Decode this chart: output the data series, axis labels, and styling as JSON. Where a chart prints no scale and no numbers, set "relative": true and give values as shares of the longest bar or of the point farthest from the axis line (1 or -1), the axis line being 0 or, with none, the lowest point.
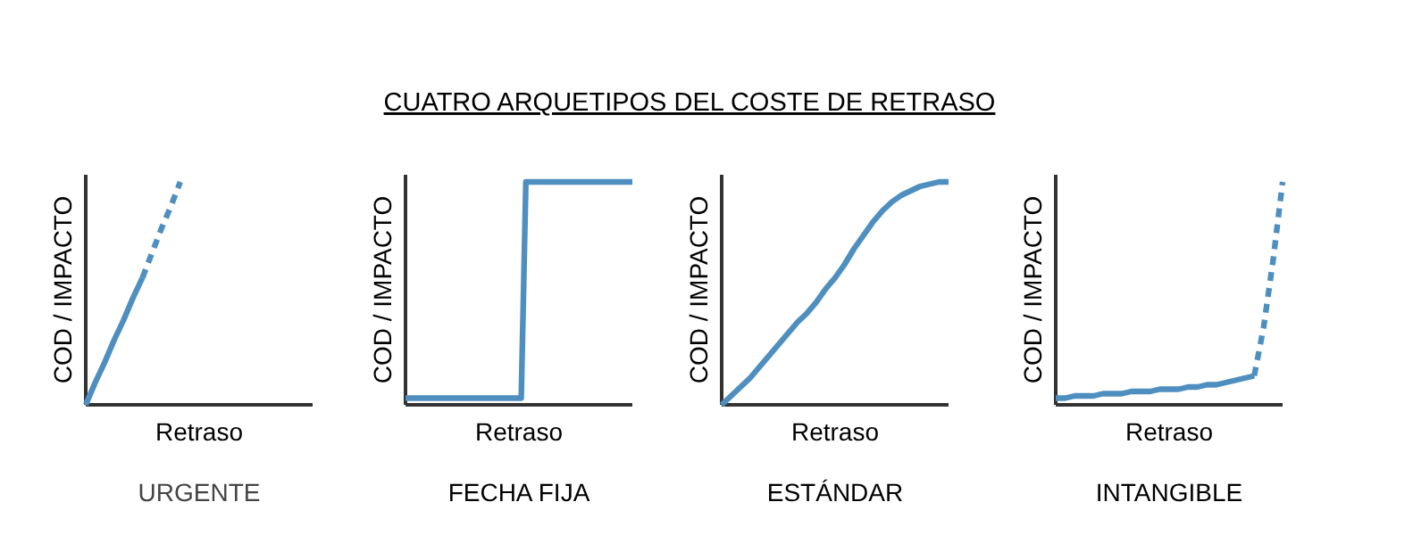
{
  "chart_data": [
    {
      "type": "line",
      "title": "URGENTE",
      "xlabel": "Retraso",
      "ylabel": "COD / IMPACTO",
      "relative": true,
      "categories": [
        null,
        null,
        null,
        null,
        null,
        null,
        null,
        null,
        null,
        null,
        null
      ],
      "annotations": [
        "CUATRO ARQUETIPOS DEL COSTE DE RETRASO"
      ],
      "series": [
        {
          "color": "#4f8fc0",
          "line_style": "solid",
          "values": [
            0,
            0.1,
            0.19,
            0.29,
            0.38,
            0.48,
            0.57,
            null,
            null,
            null,
            null
          ]
        },
        {
          "color": "#4f8fc0",
          "line_style": "dashed",
          "values": [
            null,
            null,
            null,
            null,
            null,
            null,
            0.57,
            0.68,
            0.79,
            0.89,
            1
          ]
        }
      ]
    },
    {
      "type": "line",
      "title": "FECHA FIJA",
      "xlabel": "Retraso",
      "ylabel": "COD / IMPACTO",
      "relative": true,
      "categories": [
        null,
        null,
        null,
        null,
        null,
        null,
        null,
        null,
        null,
        null,
        null,
        null,
        null,
        null,
        null,
        null,
        null,
        null,
        null,
        null,
        null,
        null,
        null,
        null,
        null,
        null,
        null,
        null,
        null,
        null,
        null,
        null,
        null,
        null,
        null,
        null,
        null,
        null,
        null,
        null,
        null,
        null,
        null,
        null,
        null,
        null,
        null,
        null,
        null,
        null
      ],
      "series": [
        {
          "color": "#4f8fc0",
          "line_style": "solid",
          "values": [
            0.03,
            0.03,
            0.03,
            0.03,
            0.03,
            0.03,
            0.03,
            0.03,
            0.03,
            0.03,
            0.03,
            0.03,
            0.03,
            0.03,
            0.03,
            0.03,
            0.03,
            0.03,
            0.03,
            0.03,
            0.03,
            0.03,
            0.03,
            0.03,
            0.03,
            0.03,
            1,
            1,
            1,
            1,
            1,
            1,
            1,
            1,
            1,
            1,
            1,
            1,
            1,
            1,
            1,
            1,
            1,
            1,
            1,
            1,
            1,
            1,
            1,
            1
          ]
        }
      ]
    },
    {
      "type": "line",
      "title": "ESTÁNDAR",
      "xlabel": "Retraso",
      "ylabel": "COD / IMPACTO",
      "relative": true,
      "categories": [
        null,
        null,
        null,
        null,
        null,
        null,
        null,
        null,
        null,
        null,
        null,
        null,
        null,
        null,
        null,
        null,
        null,
        null,
        null,
        null,
        null,
        null,
        null,
        null,
        null
      ],
      "series": [
        {
          "color": "#4f8fc0",
          "line_style": "solid",
          "values": [
            0,
            0.04,
            0.08,
            0.12,
            0.17,
            0.22,
            0.27,
            0.32,
            0.37,
            0.41,
            0.46,
            0.52,
            0.57,
            0.63,
            0.7,
            0.76,
            0.82,
            0.87,
            0.91,
            0.94,
            0.96,
            0.98,
            0.99,
            1,
            1
          ]
        }
      ]
    },
    {
      "type": "line",
      "title": "INTANGIBLE",
      "xlabel": "Retraso",
      "ylabel": "COD / IMPACTO",
      "relative": true,
      "categories": [
        null,
        null,
        null,
        null,
        null,
        null,
        null,
        null,
        null,
        null,
        null,
        null,
        null,
        null,
        null,
        null,
        null,
        null,
        null,
        null,
        null,
        null,
        null,
        null,
        null
      ],
      "series": [
        {
          "color": "#4f8fc0",
          "line_style": "solid",
          "values": [
            0.03,
            0.03,
            0.04,
            0.04,
            0.04,
            0.05,
            0.05,
            0.05,
            0.06,
            0.06,
            0.06,
            0.07,
            0.07,
            0.07,
            0.08,
            0.08,
            0.09,
            0.09,
            0.1,
            0.11,
            0.12,
            0.13,
            null,
            null,
            null
          ]
        },
        {
          "color": "#4f8fc0",
          "line_style": "dashed",
          "values": [
            null,
            null,
            null,
            null,
            null,
            null,
            null,
            null,
            null,
            null,
            null,
            null,
            null,
            null,
            null,
            null,
            null,
            null,
            null,
            null,
            null,
            0.13,
            0.35,
            0.65,
            1
          ]
        }
      ]
    }
  ]
}
